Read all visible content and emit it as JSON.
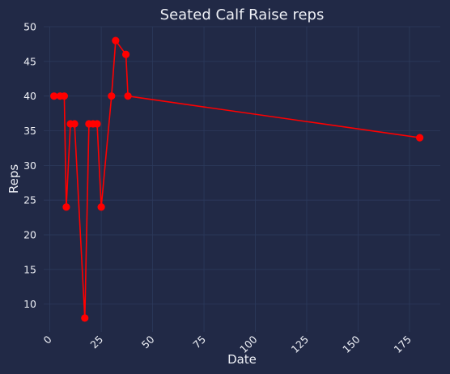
{
  "chart_data": {
    "type": "line",
    "title": "Seated Calf Raise reps",
    "xlabel": "Date",
    "ylabel": "Reps",
    "xlim": [
      -3,
      190
    ],
    "ylim": [
      6,
      50
    ],
    "xticks": [
      0,
      25,
      50,
      75,
      100,
      125,
      150,
      175
    ],
    "yticks": [
      10,
      15,
      20,
      25,
      30,
      35,
      40,
      45,
      50
    ],
    "grid": true,
    "series": [
      {
        "color": "#ff0000",
        "x": [
          2,
          5,
          7,
          8,
          10,
          12,
          17,
          19,
          21,
          23,
          25,
          30,
          32,
          37,
          38,
          180
        ],
        "y": [
          40,
          40,
          40,
          24,
          36,
          36,
          8,
          36,
          36,
          36,
          24,
          40,
          48,
          46,
          40,
          34
        ]
      }
    ]
  },
  "colors": {
    "background": "#212946",
    "grid": "#2c3a5c",
    "text": "#eef0f6",
    "line": "#ff0000"
  }
}
